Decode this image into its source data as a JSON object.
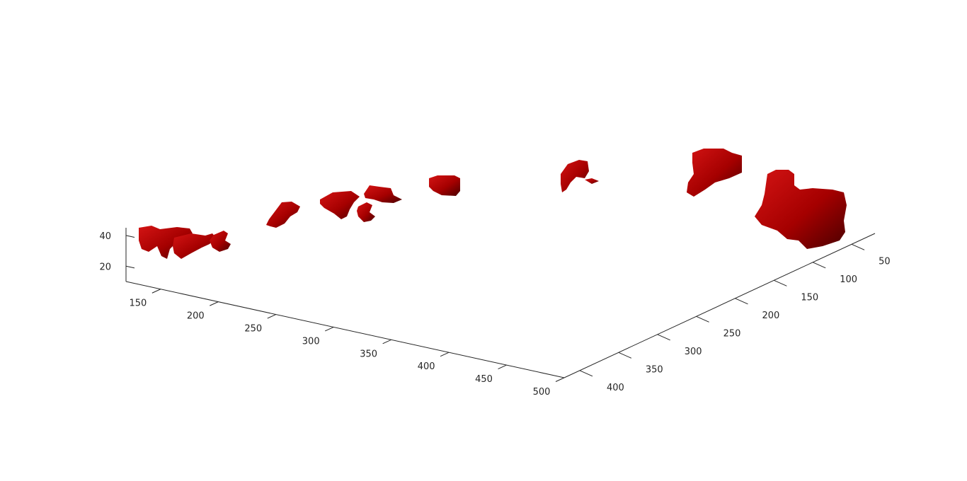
{
  "chart_data": {
    "type": "isosurface-3d",
    "surface_color": "#b00000",
    "surface_shadow_color": "#4a0000",
    "x_axis": {
      "ticks": [
        150,
        200,
        250,
        300,
        350,
        400,
        450,
        500
      ],
      "labels": [
        "150",
        "200",
        "250",
        "300",
        "350",
        "400",
        "450",
        "500"
      ],
      "range": [
        120,
        500
      ]
    },
    "y_axis": {
      "ticks": [
        50,
        100,
        150,
        200,
        250,
        300,
        350,
        400
      ],
      "labels": [
        "50",
        "100",
        "150",
        "200",
        "250",
        "300",
        "350",
        "400"
      ],
      "range": [
        20,
        420
      ]
    },
    "z_axis": {
      "ticks": [
        20,
        40
      ],
      "labels": [
        "20",
        "40"
      ],
      "range": [
        10,
        45
      ]
    },
    "grid": false,
    "box": false,
    "blobs": [
      {
        "id": "b1",
        "cx": 135,
        "cy": 185,
        "z": 38
      },
      {
        "id": "b2",
        "cx": 160,
        "cy": 180,
        "z": 35
      },
      {
        "id": "b3",
        "cx": 245,
        "cy": 140,
        "z": 35
      },
      {
        "id": "b4",
        "cx": 300,
        "cy": 120,
        "z": 38
      },
      {
        "id": "b5",
        "cx": 340,
        "cy": 110,
        "z": 38
      },
      {
        "id": "b6",
        "cx": 380,
        "cy": 95,
        "z": 40
      },
      {
        "id": "b7",
        "cx": 470,
        "cy": 75,
        "z": 40
      },
      {
        "id": "b8",
        "cx": 500,
        "cy": 60,
        "z": 42
      },
      {
        "id": "b9",
        "cx": 495,
        "cy": 120,
        "z": 40
      }
    ]
  }
}
